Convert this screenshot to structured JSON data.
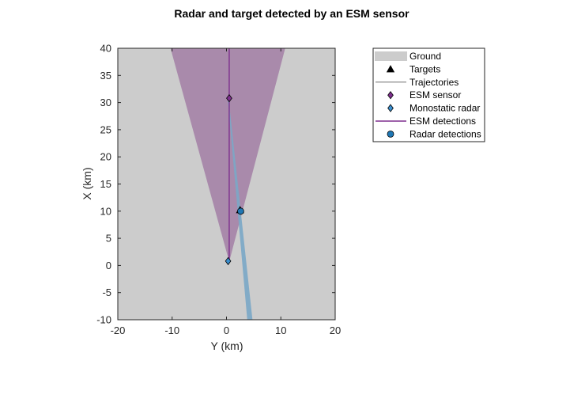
{
  "chart_data": {
    "type": "scatter",
    "title": "Radar and target detected by an ESM sensor",
    "xlabel": "Y (km)",
    "ylabel": "X (km)",
    "xlim": [
      -20,
      20
    ],
    "ylim": [
      -10,
      40
    ],
    "xticks": [
      -20,
      -10,
      0,
      10,
      20
    ],
    "yticks": [
      -10,
      -5,
      0,
      5,
      10,
      15,
      20,
      25,
      30,
      35,
      40
    ],
    "grid": false,
    "legend_position": "top-right, outside axes",
    "colors": {
      "ground": "#cccccc",
      "esm_coverage": "#a98aab",
      "radar_beam": "#7aa7c7",
      "esm_detection": "#7e2f8e",
      "radar_detection": "#1f77b4",
      "esm_sensor_marker": "#7e2f8e",
      "radar_marker": "#3b8fcf",
      "target_marker": "#000000"
    },
    "esm_coverage": {
      "apex": [
        0.5,
        0.7
      ],
      "far_edges": [
        [
          -10.3,
          40
        ],
        [
          10.8,
          40
        ]
      ]
    },
    "radar_beam": {
      "start": [
        0.3,
        30.8
      ],
      "end": [
        4.3,
        -10
      ],
      "width_km": 0.8
    },
    "series": [
      {
        "name": "Ground",
        "kind": "patch"
      },
      {
        "name": "Targets",
        "kind": "marker",
        "marker": "triangle",
        "points": [
          [
            2.5,
            10.2
          ]
        ]
      },
      {
        "name": "Trajectories",
        "kind": "line",
        "points": []
      },
      {
        "name": "ESM sensor",
        "kind": "marker",
        "marker": "diamond",
        "points": [
          [
            0.5,
            30.8
          ]
        ]
      },
      {
        "name": "Monostatic radar",
        "kind": "marker",
        "marker": "diamond",
        "points": [
          [
            0.3,
            0.8
          ]
        ]
      },
      {
        "name": "ESM detections",
        "kind": "line",
        "points": [
          [
            0.5,
            40
          ],
          [
            0.5,
            0.8
          ]
        ]
      },
      {
        "name": "Radar detections",
        "kind": "marker",
        "marker": "circle",
        "points": [
          [
            2.6,
            10.0
          ]
        ]
      }
    ]
  }
}
